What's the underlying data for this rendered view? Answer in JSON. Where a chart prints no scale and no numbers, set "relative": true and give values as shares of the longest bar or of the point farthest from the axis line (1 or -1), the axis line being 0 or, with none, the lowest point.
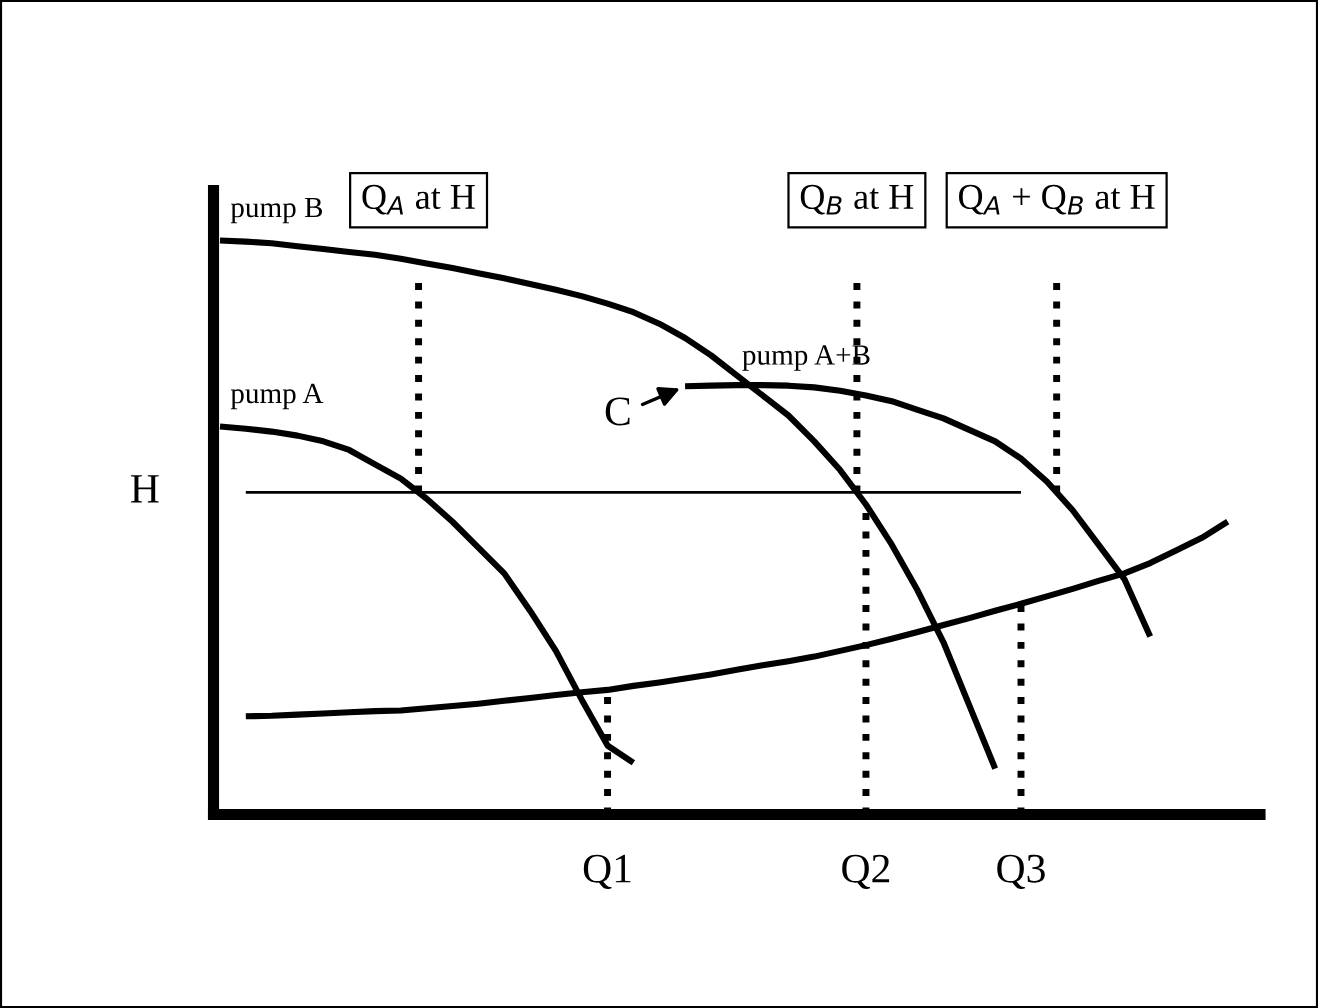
{
  "chart_data": {
    "type": "line",
    "relative": true,
    "categories": [
      null,
      null,
      null,
      null,
      null,
      null,
      null,
      null,
      null,
      null,
      null,
      null,
      null,
      null,
      null,
      "Q1",
      null,
      null,
      null,
      null,
      null,
      null,
      null,
      null,
      null,
      "Q2",
      null,
      null,
      null,
      null,
      null,
      "Q3",
      null,
      null,
      null,
      null,
      null,
      null,
      null,
      null,
      null
    ],
    "series": [
      {
        "name": "pump B",
        "color": "#000000",
        "values": [
          1.0,
          0.998,
          0.995,
          0.99,
          0.985,
          0.98,
          0.975,
          0.968,
          0.96,
          0.952,
          0.943,
          0.934,
          0.924,
          0.914,
          0.903,
          0.89,
          0.875,
          0.855,
          0.83,
          0.8,
          0.765,
          0.73,
          0.695,
          0.65,
          0.6,
          0.54,
          0.47,
          0.39,
          0.3,
          0.19,
          0.08,
          null,
          null,
          null,
          null,
          null,
          null,
          null,
          null,
          null,
          null
        ]
      },
      {
        "name": "pump A",
        "color": "#000000",
        "values": [
          0.676,
          0.672,
          0.667,
          0.66,
          0.65,
          0.635,
          0.61,
          0.585,
          0.55,
          0.51,
          0.465,
          0.42,
          0.355,
          0.285,
          0.2,
          0.12,
          0.09,
          null,
          null,
          null,
          null,
          null,
          null,
          null,
          null,
          null,
          null,
          null,
          null,
          null,
          null,
          null,
          null,
          null,
          null,
          null,
          null,
          null,
          null,
          null,
          null
        ]
      },
      {
        "name": "pump A+B",
        "color": "#000000",
        "values": [
          null,
          null,
          null,
          null,
          null,
          null,
          null,
          null,
          null,
          null,
          null,
          null,
          null,
          null,
          null,
          null,
          null,
          null,
          0.746,
          0.747,
          0.748,
          0.748,
          0.747,
          0.744,
          0.738,
          0.73,
          0.72,
          0.705,
          0.69,
          0.67,
          0.65,
          0.62,
          0.58,
          0.53,
          0.47,
          0.41,
          0.31,
          null,
          null,
          null,
          null
        ]
      },
      {
        "color": "#000000",
        "values": [
          null,
          0.171,
          0.172,
          0.174,
          0.176,
          0.178,
          0.18,
          0.181,
          0.185,
          0.189,
          0.193,
          0.198,
          0.203,
          0.208,
          0.213,
          0.217,
          0.224,
          0.23,
          0.237,
          0.244,
          0.252,
          0.26,
          0.267,
          0.275,
          0.285,
          0.295,
          0.306,
          0.318,
          0.33,
          0.342,
          0.355,
          0.367,
          0.38,
          0.393,
          0.407,
          0.42,
          0.438,
          0.46,
          0.482,
          0.51,
          null
        ]
      },
      {
        "name": "H",
        "color": "#000000",
        "values": [
          null,
          0.561,
          0.561,
          0.561,
          0.561,
          0.561,
          0.561,
          0.561,
          0.561,
          0.561,
          0.561,
          0.561,
          0.561,
          0.561,
          0.561,
          0.561,
          0.561,
          0.561,
          0.561,
          0.561,
          0.561,
          0.561,
          0.561,
          0.561,
          0.561,
          0.561,
          0.561,
          0.561,
          0.561,
          0.561,
          0.561,
          0.561,
          null,
          null,
          null,
          null,
          null,
          null,
          null,
          null,
          null
        ]
      }
    ],
    "annotations": [
      "Q$_{A}$ at H",
      "Q$_{B}$ at H",
      "Q$_{A}$ + Q$_{B}$ at H",
      "C"
    ]
  }
}
